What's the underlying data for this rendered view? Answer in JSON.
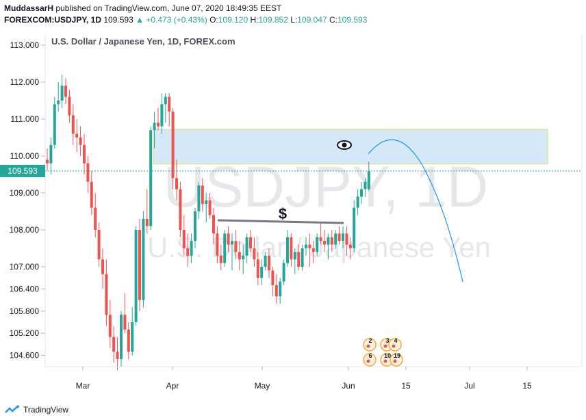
{
  "header": {
    "author": "MuddassarH",
    "published": "published on TradingView.com, June 07, 2020 18:49:35 EEST",
    "symbol": "FOREXCOM:USDJPY, 1D",
    "last": "109.593",
    "change": "+0.473 (+0.43%)",
    "open_label": "O:",
    "open": "109.120",
    "high_label": "H:",
    "high": "109.852",
    "low_label": "L:",
    "low": "109.047",
    "close_label": "C:",
    "close": "109.593"
  },
  "footer": {
    "brand": "TradingView"
  },
  "colors": {
    "up": "#26a69a",
    "down": "#ef5350",
    "zone_fill": "#d4e8f8",
    "zone_border": "#e2dc7a",
    "arc": "#2196f3",
    "trendline": "#787b86",
    "price_tag": "#26a69a"
  },
  "chart_data": {
    "type": "candlestick",
    "title": "U.S. Dollar / Japanese Yen, 1D, FOREX.com",
    "watermark": "USDJPY, 1D",
    "watermark_sub": "U.S. Dollar / Japanese Yen",
    "y_ticks": [
      "113.000",
      "112.000",
      "111.000",
      "110.000",
      "109.000",
      "108.000",
      "107.000",
      "106.400",
      "105.800",
      "105.200",
      "104.600"
    ],
    "x_ticks": [
      "Mar",
      "Apr",
      "May",
      "Jun",
      "15",
      "Jul",
      "15"
    ],
    "price_label": "109.593",
    "annotation_dollar": "$",
    "zone": {
      "from": 110.72,
      "to": 109.78,
      "label": "eye-icon"
    },
    "events_labels": [
      "2",
      "3",
      "4",
      "6",
      "10",
      "19"
    ],
    "ohlc": [
      [
        109.9,
        110.2,
        109.6,
        109.8
      ],
      [
        109.8,
        110.5,
        109.5,
        110.3
      ],
      [
        110.3,
        111.6,
        110.2,
        111.4
      ],
      [
        111.4,
        112.0,
        111.2,
        111.5
      ],
      [
        111.5,
        112.2,
        111.3,
        111.9
      ],
      [
        111.9,
        112.1,
        111.4,
        111.6
      ],
      [
        111.6,
        111.8,
        110.9,
        111.1
      ],
      [
        111.1,
        111.4,
        110.3,
        110.6
      ],
      [
        110.6,
        111.0,
        110.1,
        110.5
      ],
      [
        110.5,
        110.8,
        110.0,
        110.3
      ],
      [
        110.3,
        110.6,
        109.5,
        109.8
      ],
      [
        109.8,
        110.0,
        109.0,
        109.3
      ],
      [
        109.3,
        109.6,
        108.4,
        108.6
      ],
      [
        108.6,
        109.0,
        107.8,
        108.0
      ],
      [
        108.0,
        108.2,
        107.0,
        107.2
      ],
      [
        107.2,
        107.5,
        106.4,
        106.8
      ],
      [
        106.8,
        107.2,
        105.4,
        105.7
      ],
      [
        105.7,
        106.1,
        104.8,
        105.1
      ],
      [
        105.1,
        105.4,
        104.4,
        104.7
      ],
      [
        104.7,
        105.1,
        104.2,
        104.5
      ],
      [
        104.5,
        105.8,
        104.3,
        105.7
      ],
      [
        105.7,
        106.3,
        105.2,
        105.3
      ],
      [
        105.3,
        105.5,
        104.5,
        104.7
      ],
      [
        104.7,
        105.9,
        104.6,
        105.5
      ],
      [
        105.5,
        108.1,
        105.4,
        108.0
      ],
      [
        108.0,
        108.3,
        105.8,
        106.1
      ],
      [
        106.1,
        108.5,
        105.9,
        108.3
      ],
      [
        108.3,
        109.1,
        107.9,
        108.1
      ],
      [
        108.1,
        110.8,
        108.0,
        110.7
      ],
      [
        110.7,
        111.2,
        110.2,
        110.9
      ],
      [
        110.9,
        111.3,
        110.7,
        110.8
      ],
      [
        110.8,
        111.7,
        110.6,
        111.4
      ],
      [
        111.4,
        111.7,
        110.9,
        111.6
      ],
      [
        111.6,
        111.7,
        110.8,
        111.2
      ],
      [
        111.2,
        111.3,
        109.1,
        109.4
      ],
      [
        109.4,
        109.9,
        108.8,
        109.1
      ],
      [
        109.1,
        109.3,
        107.8,
        108.0
      ],
      [
        108.0,
        108.4,
        107.3,
        107.5
      ],
      [
        107.5,
        107.9,
        107.0,
        107.3
      ],
      [
        107.3,
        107.9,
        107.1,
        107.7
      ],
      [
        107.7,
        108.6,
        107.5,
        108.5
      ],
      [
        108.5,
        109.3,
        108.3,
        109.2
      ],
      [
        109.2,
        109.4,
        108.5,
        108.7
      ],
      [
        108.7,
        109.0,
        108.2,
        108.8
      ],
      [
        108.8,
        109.0,
        108.3,
        108.4
      ],
      [
        108.4,
        108.6,
        107.6,
        107.9
      ],
      [
        107.9,
        108.1,
        107.1,
        107.3
      ],
      [
        107.3,
        107.6,
        106.9,
        107.1
      ],
      [
        107.1,
        108.0,
        107.0,
        107.9
      ],
      [
        107.9,
        108.1,
        107.4,
        107.6
      ],
      [
        107.6,
        107.9,
        106.9,
        107.7
      ],
      [
        107.7,
        108.0,
        107.2,
        107.4
      ],
      [
        107.4,
        107.7,
        106.9,
        107.2
      ],
      [
        107.2,
        107.6,
        106.8,
        107.3
      ],
      [
        107.3,
        107.9,
        107.1,
        107.8
      ],
      [
        107.8,
        108.0,
        107.4,
        107.5
      ],
      [
        107.5,
        107.8,
        107.0,
        107.2
      ],
      [
        107.2,
        107.4,
        106.5,
        106.7
      ],
      [
        106.7,
        107.2,
        106.5,
        107.0
      ],
      [
        107.0,
        107.4,
        106.9,
        107.3
      ],
      [
        107.3,
        107.5,
        106.7,
        106.9
      ],
      [
        106.9,
        107.0,
        106.2,
        106.5
      ],
      [
        106.5,
        106.8,
        106.0,
        106.2
      ],
      [
        106.2,
        106.7,
        106.0,
        106.6
      ],
      [
        106.6,
        107.2,
        106.5,
        107.1
      ],
      [
        107.1,
        108.0,
        107.0,
        107.8
      ],
      [
        107.8,
        107.9,
        107.0,
        107.2
      ],
      [
        107.2,
        107.5,
        106.8,
        107.4
      ],
      [
        107.4,
        107.6,
        106.9,
        107.0
      ],
      [
        107.0,
        107.6,
        106.9,
        107.5
      ],
      [
        107.5,
        107.8,
        107.3,
        107.6
      ],
      [
        107.6,
        107.9,
        107.0,
        107.5
      ],
      [
        107.5,
        107.7,
        107.1,
        107.4
      ],
      [
        107.4,
        107.9,
        107.3,
        107.8
      ],
      [
        107.8,
        108.2,
        107.6,
        107.7
      ],
      [
        107.7,
        108.0,
        107.4,
        107.6
      ],
      [
        107.6,
        107.9,
        107.2,
        107.8
      ],
      [
        107.8,
        108.0,
        107.4,
        107.6
      ],
      [
        107.6,
        108.0,
        107.5,
        107.9
      ],
      [
        107.9,
        108.1,
        107.6,
        107.7
      ],
      [
        107.7,
        108.1,
        107.5,
        107.9
      ],
      [
        107.9,
        108.1,
        107.3,
        107.6
      ],
      [
        107.6,
        107.8,
        107.2,
        107.5
      ],
      [
        107.5,
        108.8,
        107.4,
        108.6
      ],
      [
        108.6,
        109.1,
        108.4,
        108.9
      ],
      [
        108.9,
        109.3,
        108.7,
        109.1
      ],
      [
        109.1,
        109.4,
        108.9,
        109.3
      ],
      [
        109.1,
        109.85,
        109.05,
        109.59
      ]
    ]
  }
}
